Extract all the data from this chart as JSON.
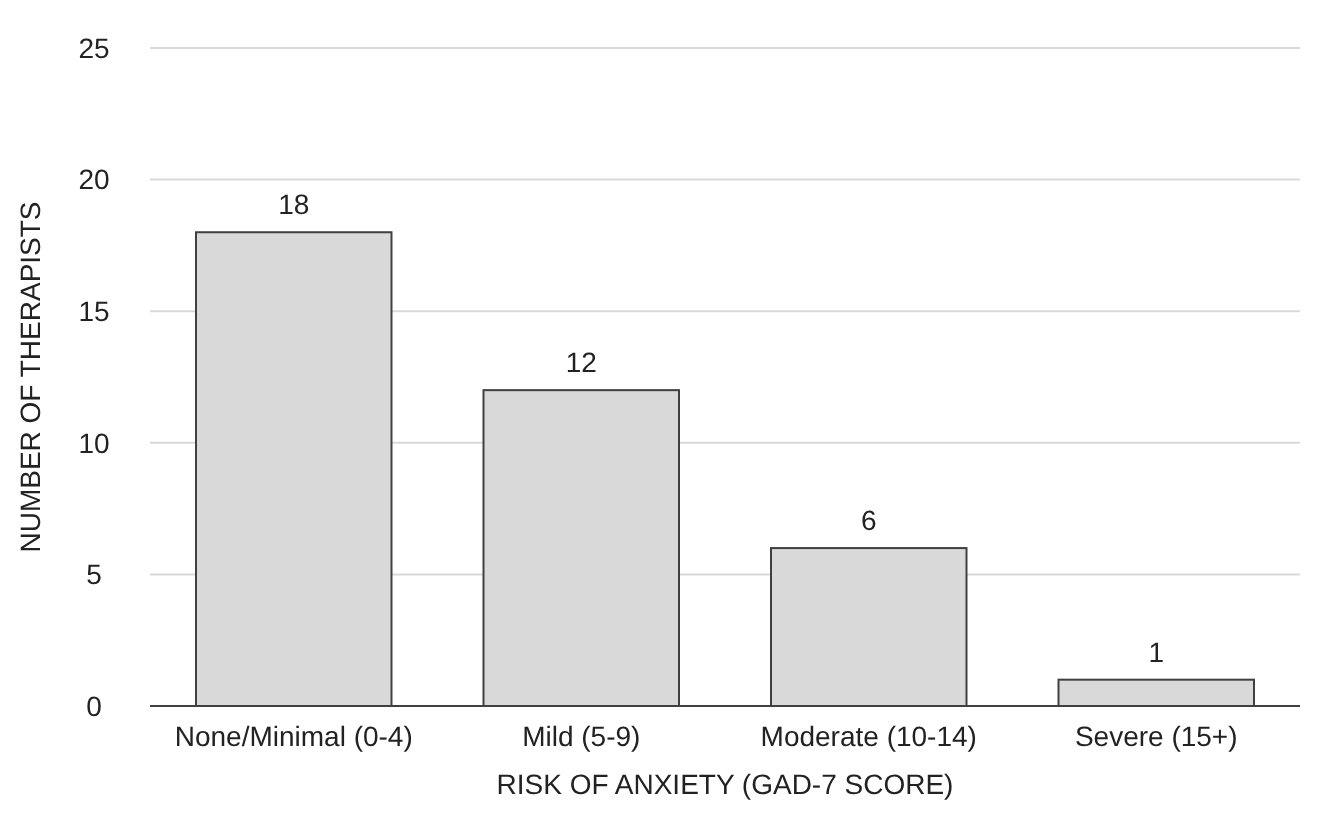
{
  "chart_data": {
    "type": "bar",
    "xlabel": "RISK OF ANXIETY (GAD-7 SCORE)",
    "ylabel": "NUMBER OF THERAPISTS",
    "categories": [
      "None/Minimal (0-4)",
      "Mild (5-9)",
      "Moderate (10-14)",
      "Severe (15+)"
    ],
    "values": [
      18,
      12,
      6,
      1
    ],
    "color": "#d9d9d9",
    "ylim": [
      0,
      25
    ],
    "yticks": [
      0,
      5,
      10,
      15,
      20,
      25
    ],
    "grid": "y",
    "data_labels": true
  }
}
